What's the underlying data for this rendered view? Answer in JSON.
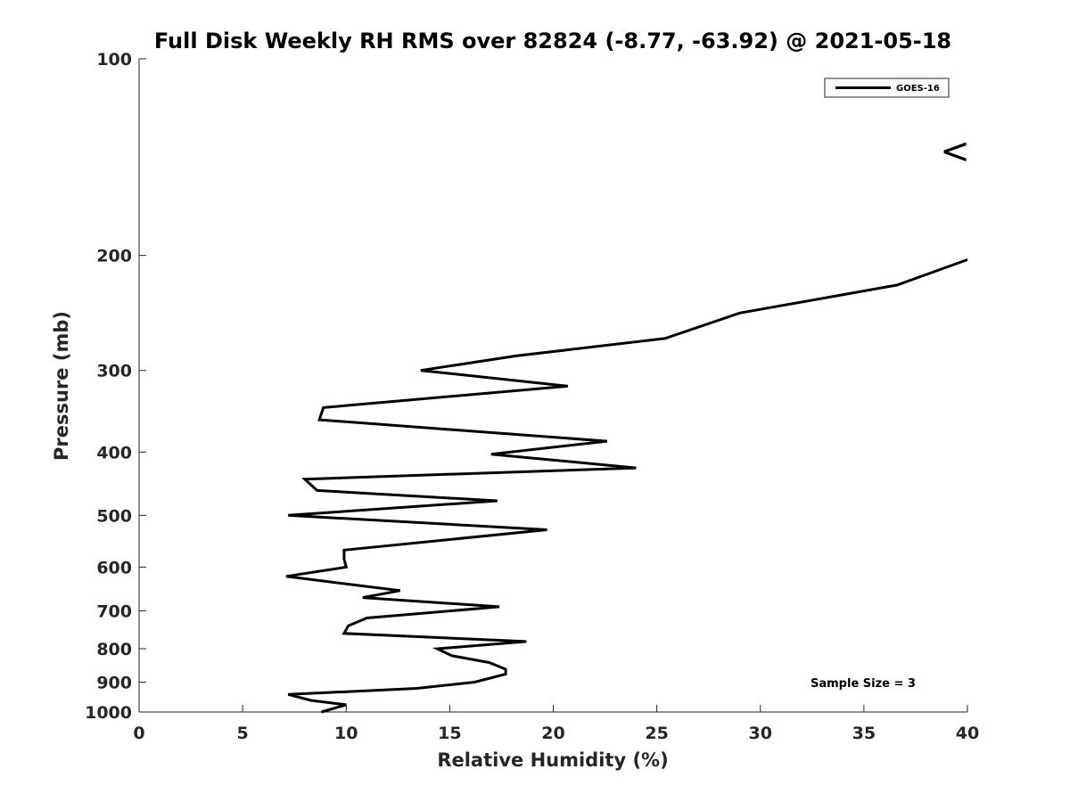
{
  "chart_data": {
    "type": "line",
    "title": "Full Disk Weekly RH RMS over 82824 (-8.77, -63.92) @ 2021-05-18",
    "xlabel": "Relative Humidity (%)",
    "ylabel": "Pressure (mb)",
    "xlim": [
      0,
      40
    ],
    "ylim": [
      100,
      1000
    ],
    "y_scale": "log",
    "y_reversed": true,
    "x_ticks": [
      0,
      5,
      10,
      15,
      20,
      25,
      30,
      35,
      40
    ],
    "x_tick_labels": [
      "0",
      "5",
      "10",
      "15",
      "20",
      "25",
      "30",
      "35",
      "40"
    ],
    "y_ticks": [
      100,
      200,
      300,
      400,
      500,
      600,
      700,
      800,
      900,
      1000
    ],
    "y_tick_labels": [
      "100",
      "200",
      "300",
      "400",
      "500",
      "600",
      "700",
      "800",
      "900",
      "1000"
    ],
    "grid": false,
    "legend_position": "top-right",
    "series": [
      {
        "name": "GOES-16",
        "color": "#000000",
        "points": [
          [
            40.0,
            203
          ],
          [
            36.6,
            222
          ],
          [
            29.0,
            245
          ],
          [
            25.4,
            268
          ],
          [
            18.2,
            285
          ],
          [
            13.6,
            300
          ],
          [
            20.7,
            317
          ],
          [
            8.9,
            342
          ],
          [
            8.7,
            357
          ],
          [
            22.6,
            385
          ],
          [
            17.0,
            403
          ],
          [
            24.0,
            423
          ],
          [
            8.0,
            440
          ],
          [
            8.6,
            458
          ],
          [
            17.3,
            475
          ],
          [
            7.2,
            500
          ],
          [
            19.7,
            526
          ],
          [
            9.9,
            565
          ],
          [
            9.9,
            583
          ],
          [
            10.0,
            600
          ],
          [
            7.1,
            620
          ],
          [
            12.6,
            652
          ],
          [
            10.8,
            668
          ],
          [
            17.4,
            690
          ],
          [
            11.0,
            718
          ],
          [
            10.1,
            738
          ],
          [
            9.9,
            758
          ],
          [
            18.7,
            780
          ],
          [
            14.4,
            800
          ],
          [
            15.1,
            820
          ],
          [
            16.9,
            840
          ],
          [
            17.7,
            860
          ],
          [
            17.7,
            875
          ],
          [
            16.2,
            900
          ],
          [
            13.4,
            920
          ],
          [
            7.2,
            940
          ],
          [
            8.3,
            960
          ],
          [
            10.0,
            975
          ],
          [
            8.8,
            1000
          ]
        ]
      }
    ],
    "annotations": {
      "sample_size": "Sample Size = 3",
      "off_scale_marker": "<"
    }
  }
}
